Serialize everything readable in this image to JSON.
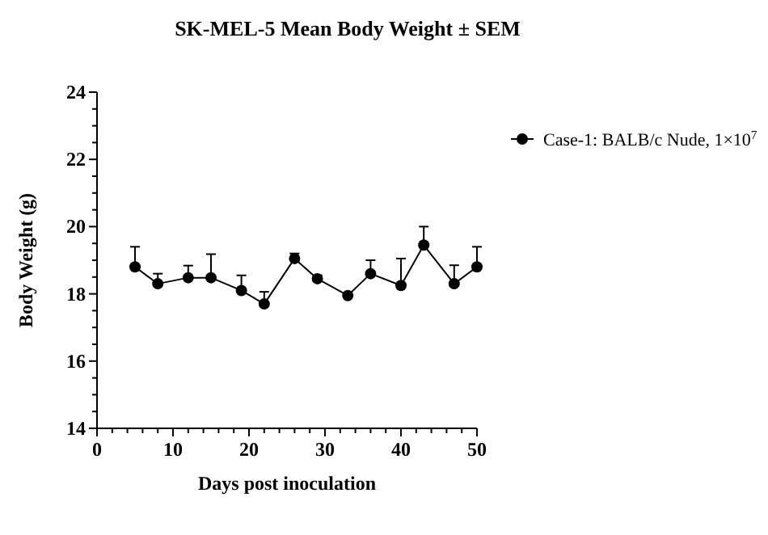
{
  "chart_data": {
    "type": "line",
    "title": "SK-MEL-5 Mean Body Weight ± SEM",
    "xlabel": "Days post inoculation",
    "ylabel": "Body Weight (g)",
    "x": [
      5,
      8,
      12,
      15,
      19,
      22,
      26,
      29,
      33,
      36,
      40,
      43,
      47,
      50
    ],
    "series": [
      {
        "name": "Case-1: BALB/c Nude, 1×10$^{7}$",
        "color": "#000000",
        "values": [
          18.8,
          18.3,
          18.48,
          18.48,
          18.1,
          17.7,
          19.05,
          18.45,
          17.95,
          18.6,
          18.25,
          19.45,
          18.3,
          18.8
        ],
        "errors": [
          0.6,
          0.3,
          0.36,
          0.7,
          0.45,
          0.36,
          0.15,
          0.1,
          0.05,
          0.4,
          0.8,
          0.55,
          0.55,
          0.6
        ]
      }
    ],
    "xlim": [
      0,
      50
    ],
    "xticks": [
      0,
      {
        "value": 2,
        "label": null
      },
      {
        "value": 4,
        "label": null
      },
      {
        "value": 6,
        "label": null
      },
      {
        "value": 8,
        "label": null
      },
      10,
      {
        "value": 12,
        "label": null
      },
      {
        "value": 14,
        "label": null
      },
      {
        "value": 16,
        "label": null
      },
      {
        "value": 18,
        "label": null
      },
      20,
      {
        "value": 22,
        "label": null
      },
      {
        "value": 24,
        "label": null
      },
      {
        "value": 26,
        "label": null
      },
      {
        "value": 28,
        "label": null
      },
      30,
      {
        "value": 32,
        "label": null
      },
      {
        "value": 34,
        "label": null
      },
      {
        "value": 36,
        "label": null
      },
      {
        "value": 38,
        "label": null
      },
      40,
      {
        "value": 42,
        "label": null
      },
      {
        "value": 44,
        "label": null
      },
      {
        "value": 46,
        "label": null
      },
      {
        "value": 48,
        "label": null
      },
      50
    ],
    "ylim": [
      14,
      24
    ],
    "yticks": [
      14,
      {
        "value": 14.5,
        "label": null
      },
      {
        "value": 15,
        "label": null
      },
      {
        "value": 15.5,
        "label": null
      },
      16,
      {
        "value": 16.5,
        "label": null
      },
      {
        "value": 17,
        "label": null
      },
      {
        "value": 17.5,
        "label": null
      },
      18,
      {
        "value": 18.5,
        "label": null
      },
      {
        "value": 19,
        "label": null
      },
      {
        "value": 19.5,
        "label": null
      },
      20,
      {
        "value": 20.5,
        "label": null
      },
      {
        "value": 21,
        "label": null
      },
      {
        "value": 21.5,
        "label": null
      },
      22,
      {
        "value": 22.5,
        "label": null
      },
      {
        "value": 23,
        "label": null
      },
      {
        "value": 23.5,
        "label": null
      },
      24
    ],
    "marker": "circle",
    "line_style": "solid",
    "legend": "right",
    "grid": false
  }
}
